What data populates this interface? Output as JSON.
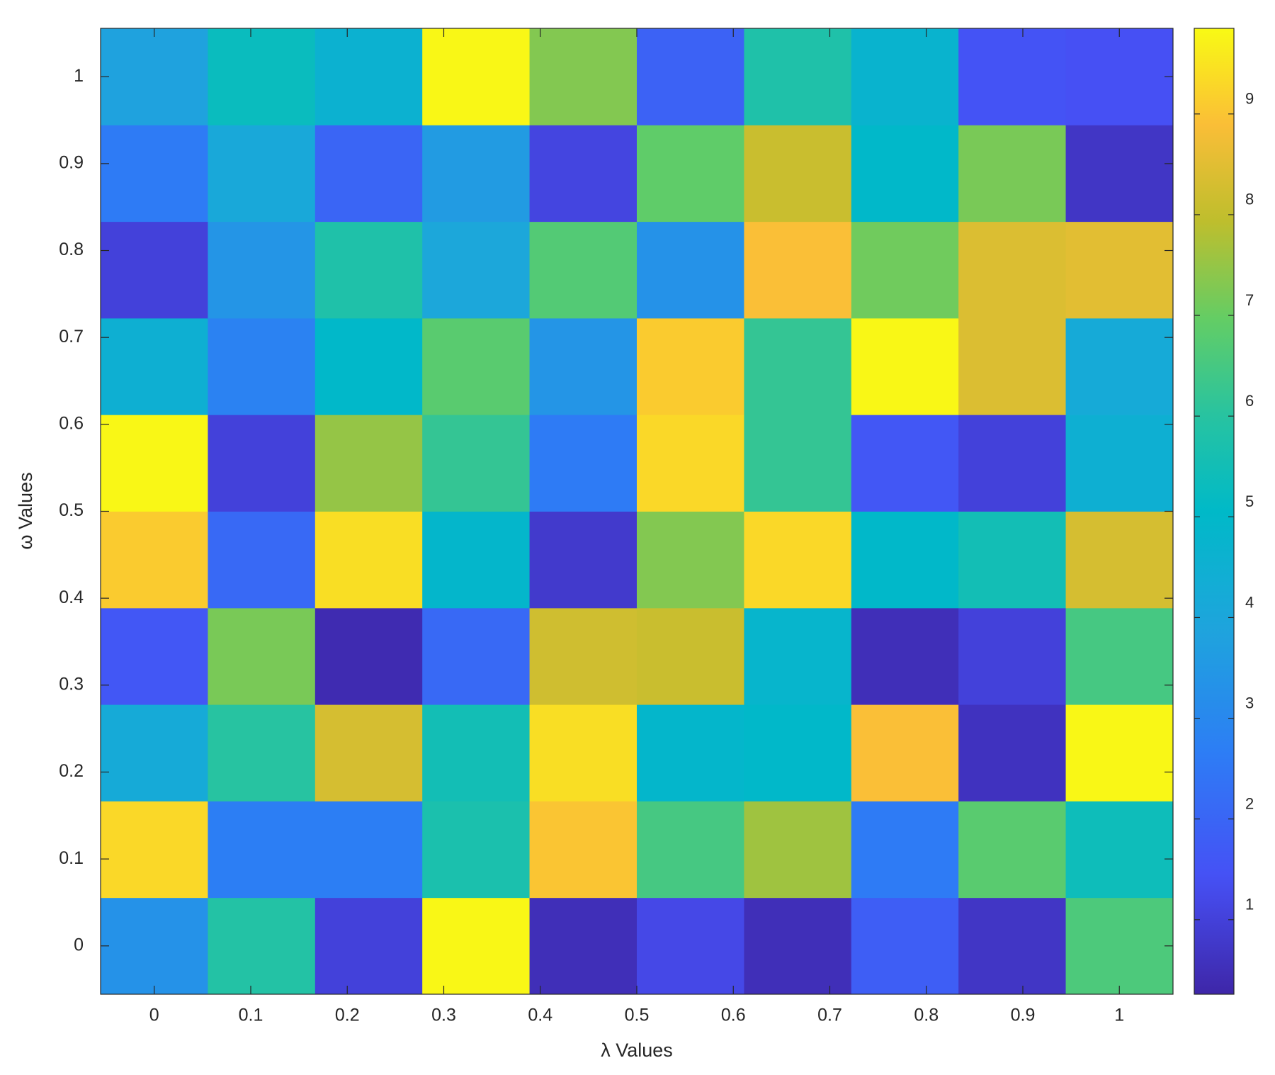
{
  "chart_data": {
    "type": "heatmap",
    "xlabel": "λ Values",
    "ylabel": "ω Values",
    "x": [
      0,
      0.1111,
      0.2222,
      0.3333,
      0.4444,
      0.5556,
      0.6667,
      0.7778,
      0.8889,
      1
    ],
    "y": [
      0,
      0.1111,
      0.2222,
      0.3333,
      0.4444,
      0.5556,
      0.6667,
      0.7778,
      0.8889,
      1
    ],
    "z": [
      [
        3.3,
        5.9,
        1.0,
        9.8,
        0.5,
        1.2,
        0.5,
        1.8,
        0.7,
        6.6
      ],
      [
        9.3,
        2.7,
        2.7,
        5.7,
        9.0,
        6.5,
        7.6,
        2.6,
        6.8,
        5.4
      ],
      [
        4.2,
        6.0,
        8.3,
        5.5,
        9.4,
        4.9,
        5.0,
        8.9,
        0.6,
        9.8
      ],
      [
        1.6,
        7.2,
        0.4,
        2.1,
        8.2,
        8.1,
        4.8,
        0.5,
        1.0,
        6.5
      ],
      [
        9.1,
        2.1,
        9.4,
        4.9,
        0.8,
        7.3,
        9.3,
        5.0,
        5.5,
        8.3
      ],
      [
        9.8,
        1.0,
        7.5,
        6.2,
        2.6,
        9.3,
        6.2,
        1.6,
        1.0,
        4.5
      ],
      [
        4.5,
        2.8,
        5.0,
        6.8,
        3.4,
        9.1,
        6.2,
        9.8,
        8.4,
        4.2
      ],
      [
        1.0,
        3.4,
        5.8,
        4.0,
        6.7,
        3.3,
        8.9,
        7.1,
        8.4,
        8.5
      ],
      [
        2.6,
        4.1,
        2.0,
        3.6,
        1.1,
        6.9,
        8.1,
        5.0,
        7.2,
        0.7
      ],
      [
        3.8,
        5.3,
        4.6,
        9.8,
        7.3,
        1.9,
        5.8,
        4.7,
        1.5,
        1.4
      ]
    ],
    "xlim": [
      -0.0556,
      1.0556
    ],
    "ylim": [
      -0.0556,
      1.0556
    ],
    "xticks": [
      0,
      0.1,
      0.2,
      0.3,
      0.4,
      0.5,
      0.6,
      0.7,
      0.8,
      0.9,
      1
    ],
    "yticks": [
      0,
      0.1,
      0.2,
      0.3,
      0.4,
      0.5,
      0.6,
      0.7,
      0.8,
      0.9,
      1
    ],
    "colormap": "parula",
    "clim": [
      0.26,
      9.85
    ],
    "cticks": [
      1,
      2,
      3,
      4,
      5,
      6,
      7,
      8,
      9
    ],
    "colorbar": true
  }
}
